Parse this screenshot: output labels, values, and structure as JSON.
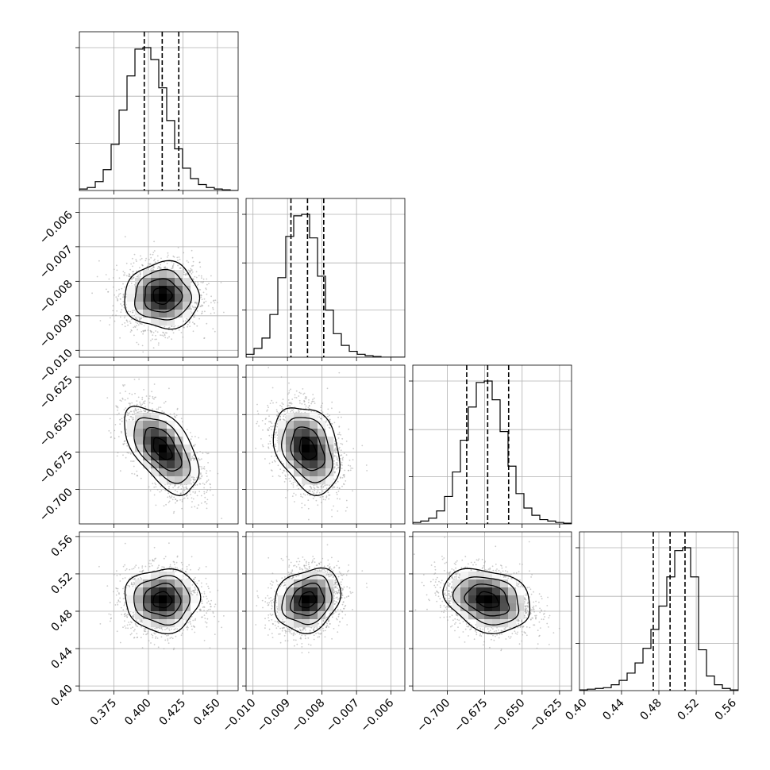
{
  "chart_data": {
    "type": "corner",
    "title": "",
    "parameters": [
      {
        "range": [
          0.35,
          0.465
        ],
        "ticks": [
          0.375,
          0.4,
          0.425,
          0.45
        ],
        "tick_labels": [
          "0.375",
          "0.400",
          "0.425",
          "0.450"
        ],
        "quantiles": [
          0.397,
          0.41,
          0.422
        ],
        "mean": 0.41,
        "sd": 0.0135
      },
      {
        "range": [
          -0.0102,
          -0.0056
        ],
        "ticks": [
          -0.01,
          -0.009,
          -0.008,
          -0.007,
          -0.006
        ],
        "tick_labels": [
          "−0.010",
          "−0.009",
          "−0.008",
          "−0.007",
          "−0.006"
        ],
        "quantiles": [
          -0.0089,
          -0.00842,
          -0.00795
        ],
        "mean": -0.00842,
        "sd": 0.00048
      },
      {
        "range": [
          -0.723,
          -0.617
        ],
        "ticks": [
          -0.7,
          -0.675,
          -0.65,
          -0.625
        ],
        "tick_labels": [
          "−0.700",
          "−0.675",
          "−0.650",
          "−0.625"
        ],
        "quantiles": [
          -0.687,
          -0.673,
          -0.659
        ],
        "mean": -0.673,
        "sd": 0.0145
      },
      {
        "range": [
          0.395,
          0.565
        ],
        "ticks": [
          0.4,
          0.44,
          0.48,
          0.52,
          0.56
        ],
        "tick_labels": [
          "0.40",
          "0.44",
          "0.48",
          "0.52",
          "0.56"
        ],
        "quantiles": [
          0.474,
          0.492,
          0.508
        ],
        "mean": 0.492,
        "sd": 0.017
      }
    ],
    "histograms": [
      [
        1,
        2,
        6,
        14,
        31,
        54,
        77,
        95,
        96,
        88,
        69,
        47,
        28,
        15,
        8,
        4,
        2,
        1,
        0.5,
        0
      ],
      [
        2,
        6,
        13,
        29,
        54,
        82,
        96,
        97,
        81,
        55,
        32,
        16,
        8,
        4,
        2,
        1,
        0.5,
        0,
        0,
        0
      ],
      [
        1,
        2,
        4,
        9,
        19,
        36,
        58,
        81,
        98,
        99,
        86,
        64,
        40,
        21,
        11,
        6,
        3,
        2,
        1,
        0.5
      ],
      [
        0.5,
        1,
        1.5,
        2,
        4,
        7,
        12,
        19,
        29,
        42,
        58,
        78,
        96,
        98,
        78,
        28,
        10,
        4,
        1.5,
        0.5
      ]
    ],
    "correlations": {
      "1-0": 0.0,
      "2-0": -0.55,
      "2-1": -0.3,
      "3-0": 0.0,
      "3-1": 0.2,
      "3-2": -0.25
    },
    "contour_levels_sigma": [
      0.5,
      1.0,
      1.5,
      2.0
    ],
    "grid": true,
    "hist_color": "#000000",
    "density_color": "#000000",
    "point_color": "#a0a0a0"
  }
}
